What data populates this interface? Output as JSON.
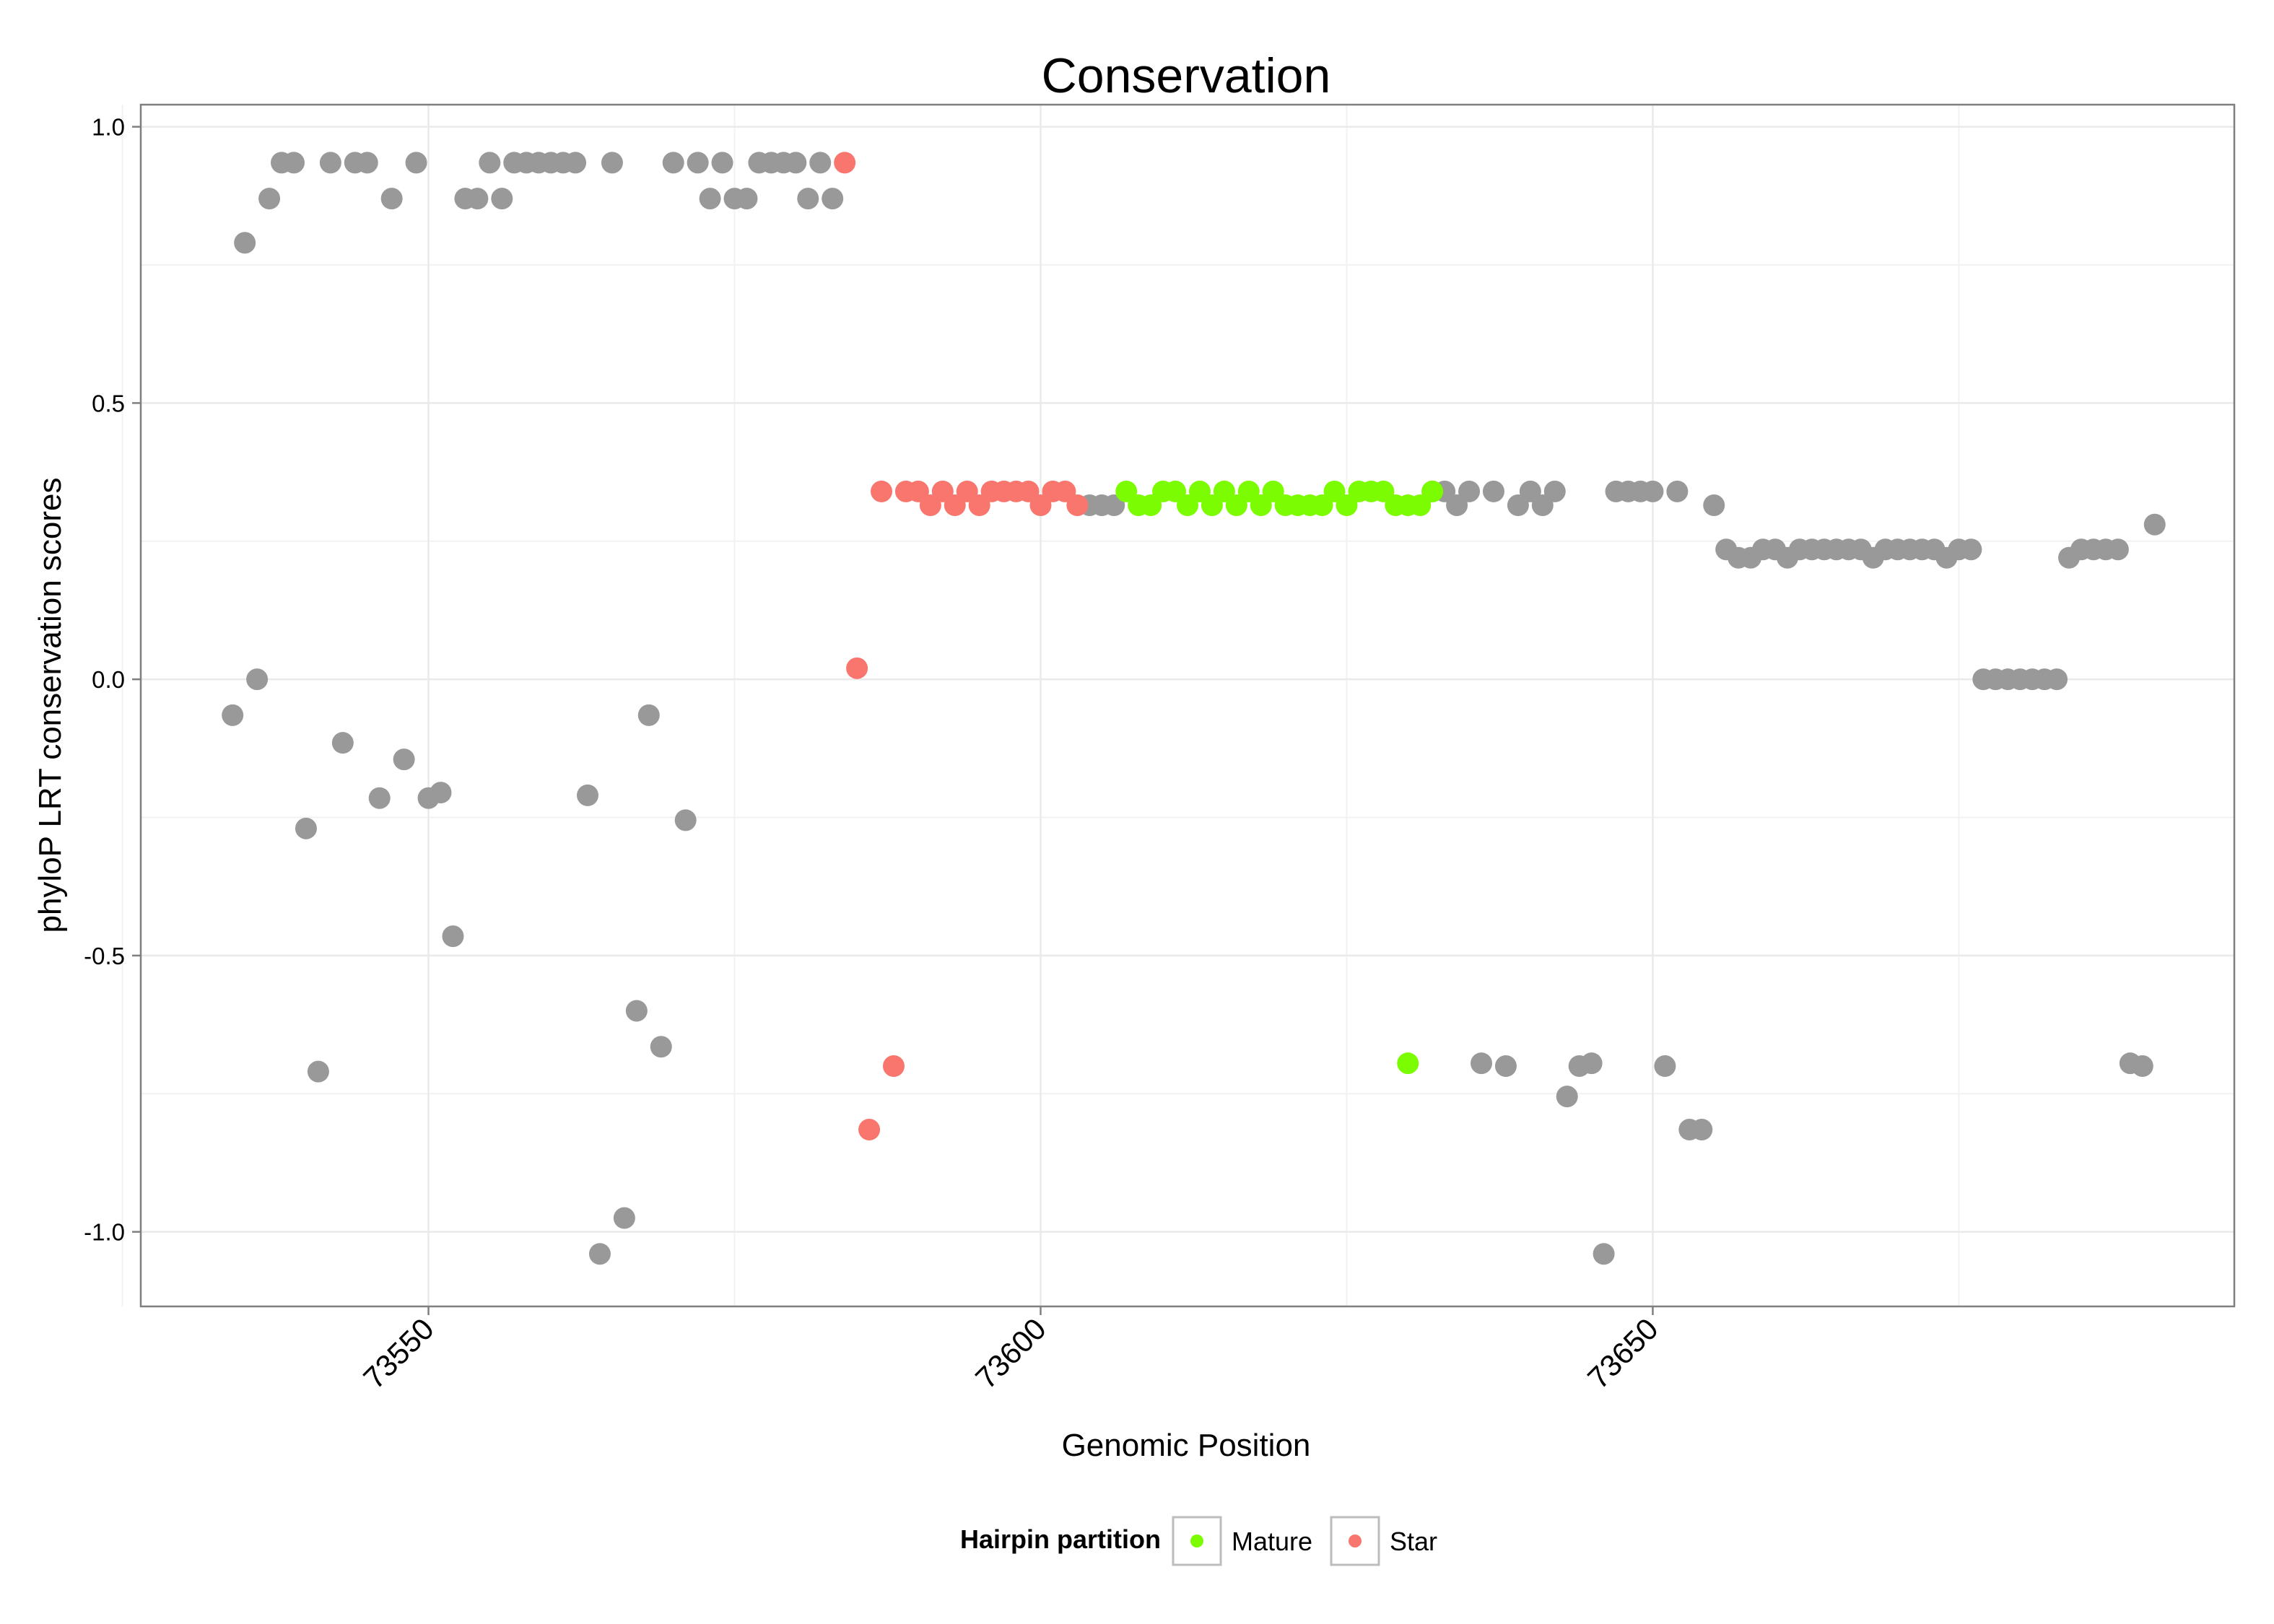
{
  "chart_data": {
    "type": "scatter",
    "title": "Conservation",
    "xlabel": "Genomic Position",
    "ylabel": "phyloP LRT conservation scores",
    "xlim": [
      73526.5,
      73697.5
    ],
    "ylim": [
      -1.135,
      1.04
    ],
    "x_ticks": [
      73550,
      73600,
      73650
    ],
    "x_tick_labels": [
      "73550",
      "73600",
      "73650"
    ],
    "x_minor_ticks": [
      73525,
      73575,
      73625,
      73675
    ],
    "y_ticks": [
      -1.0,
      -0.5,
      0.0,
      0.5,
      1.0
    ],
    "y_tick_labels": [
      "-1.0",
      "-0.5",
      "0.0",
      "0.5",
      "1.0"
    ],
    "y_minor_ticks": [
      -0.75,
      -0.25,
      0.25,
      0.75
    ],
    "grid": true,
    "legend": {
      "title": "Hairpin partition",
      "position": "bottom",
      "entries": [
        {
          "label": "Mature",
          "color": "#7CFC00"
        },
        {
          "label": "Star",
          "color": "#F8766D"
        }
      ]
    },
    "colors": {
      "Other": "#999999",
      "Mature": "#7CFC00",
      "Star": "#F8766D"
    },
    "series": [
      {
        "name": "Other",
        "points": [
          [
            73534,
            -0.065
          ],
          [
            73535,
            0.79
          ],
          [
            73536,
            0.0
          ],
          [
            73537,
            0.87
          ],
          [
            73538,
            0.935
          ],
          [
            73539,
            0.935
          ],
          [
            73540,
            -0.27
          ],
          [
            73541,
            -0.71
          ],
          [
            73542,
            0.935
          ],
          [
            73543,
            -0.115
          ],
          [
            73544,
            0.935
          ],
          [
            73545,
            0.935
          ],
          [
            73546,
            -0.215
          ],
          [
            73547,
            0.87
          ],
          [
            73548,
            -0.145
          ],
          [
            73549,
            0.935
          ],
          [
            73550,
            -0.215
          ],
          [
            73551,
            -0.205
          ],
          [
            73552,
            -0.465
          ],
          [
            73553,
            0.87
          ],
          [
            73554,
            0.87
          ],
          [
            73555,
            0.935
          ],
          [
            73556,
            0.87
          ],
          [
            73557,
            0.935
          ],
          [
            73558,
            0.935
          ],
          [
            73559,
            0.935
          ],
          [
            73560,
            0.935
          ],
          [
            73561,
            0.935
          ],
          [
            73562,
            0.935
          ],
          [
            73563,
            -0.21
          ],
          [
            73564,
            -1.04
          ],
          [
            73565,
            0.935
          ],
          [
            73566,
            -0.975
          ],
          [
            73567,
            -0.6
          ],
          [
            73568,
            -0.065
          ],
          [
            73569,
            -0.665
          ],
          [
            73570,
            0.935
          ],
          [
            73571,
            -0.255
          ],
          [
            73572,
            0.935
          ],
          [
            73573,
            0.87
          ],
          [
            73574,
            0.935
          ],
          [
            73575,
            0.87
          ],
          [
            73576,
            0.87
          ],
          [
            73577,
            0.935
          ],
          [
            73578,
            0.935
          ],
          [
            73579,
            0.935
          ],
          [
            73580,
            0.935
          ],
          [
            73581,
            0.87
          ],
          [
            73582,
            0.935
          ],
          [
            73583,
            0.87
          ],
          [
            73604,
            0.315
          ],
          [
            73605,
            0.315
          ],
          [
            73606,
            0.315
          ],
          [
            73632,
            0.34
          ],
          [
            73633,
            0.34
          ],
          [
            73634,
            0.315
          ],
          [
            73635,
            0.34
          ],
          [
            73636,
            -0.695
          ],
          [
            73637,
            0.34
          ],
          [
            73638,
            -0.7
          ],
          [
            73639,
            0.315
          ],
          [
            73640,
            0.34
          ],
          [
            73641,
            0.315
          ],
          [
            73642,
            0.34
          ],
          [
            73643,
            -0.755
          ],
          [
            73644,
            -0.7
          ],
          [
            73645,
            -0.695
          ],
          [
            73646,
            -1.04
          ],
          [
            73647,
            0.34
          ],
          [
            73648,
            0.34
          ],
          [
            73649,
            0.34
          ],
          [
            73650,
            0.34
          ],
          [
            73651,
            -0.7
          ],
          [
            73652,
            0.34
          ],
          [
            73653,
            -0.815
          ],
          [
            73654,
            -0.815
          ],
          [
            73655,
            0.315
          ],
          [
            73656,
            0.235
          ],
          [
            73657,
            0.22
          ],
          [
            73658,
            0.22
          ],
          [
            73659,
            0.235
          ],
          [
            73660,
            0.235
          ],
          [
            73661,
            0.22
          ],
          [
            73662,
            0.235
          ],
          [
            73663,
            0.235
          ],
          [
            73664,
            0.235
          ],
          [
            73665,
            0.235
          ],
          [
            73666,
            0.235
          ],
          [
            73667,
            0.235
          ],
          [
            73668,
            0.22
          ],
          [
            73669,
            0.235
          ],
          [
            73670,
            0.235
          ],
          [
            73671,
            0.235
          ],
          [
            73672,
            0.235
          ],
          [
            73673,
            0.235
          ],
          [
            73674,
            0.22
          ],
          [
            73675,
            0.235
          ],
          [
            73676,
            0.235
          ],
          [
            73677,
            0.0
          ],
          [
            73678,
            0.0
          ],
          [
            73679,
            0.0
          ],
          [
            73680,
            0.0
          ],
          [
            73681,
            0.0
          ],
          [
            73682,
            0.0
          ],
          [
            73683,
            0.0
          ],
          [
            73684,
            0.22
          ],
          [
            73685,
            0.235
          ],
          [
            73686,
            0.235
          ],
          [
            73687,
            0.235
          ],
          [
            73688,
            0.235
          ],
          [
            73689,
            -0.695
          ],
          [
            73690,
            -0.7
          ],
          [
            73691,
            0.28
          ]
        ]
      },
      {
        "name": "Star",
        "points": [
          [
            73584,
            0.935
          ],
          [
            73585,
            0.02
          ],
          [
            73586,
            -0.815
          ],
          [
            73587,
            0.34
          ],
          [
            73588,
            -0.7
          ],
          [
            73589,
            0.34
          ],
          [
            73590,
            0.34
          ],
          [
            73591,
            0.315
          ],
          [
            73592,
            0.34
          ],
          [
            73593,
            0.315
          ],
          [
            73594,
            0.34
          ],
          [
            73595,
            0.315
          ],
          [
            73596,
            0.34
          ],
          [
            73597,
            0.34
          ],
          [
            73598,
            0.34
          ],
          [
            73599,
            0.34
          ],
          [
            73600,
            0.315
          ],
          [
            73601,
            0.34
          ],
          [
            73602,
            0.34
          ],
          [
            73603,
            0.315
          ]
        ]
      },
      {
        "name": "Mature",
        "points": [
          [
            73607,
            0.34
          ],
          [
            73608,
            0.315
          ],
          [
            73609,
            0.315
          ],
          [
            73610,
            0.34
          ],
          [
            73611,
            0.34
          ],
          [
            73612,
            0.315
          ],
          [
            73613,
            0.34
          ],
          [
            73614,
            0.315
          ],
          [
            73615,
            0.34
          ],
          [
            73616,
            0.315
          ],
          [
            73617,
            0.34
          ],
          [
            73618,
            0.315
          ],
          [
            73619,
            0.34
          ],
          [
            73620,
            0.315
          ],
          [
            73621,
            0.315
          ],
          [
            73622,
            0.315
          ],
          [
            73623,
            0.315
          ],
          [
            73624,
            0.34
          ],
          [
            73625,
            0.315
          ],
          [
            73626,
            0.34
          ],
          [
            73627,
            0.34
          ],
          [
            73628,
            0.34
          ],
          [
            73629,
            0.315
          ],
          [
            73630,
            0.315
          ],
          [
            73631,
            0.315
          ],
          [
            73630,
            -0.695
          ],
          [
            73632,
            0.34
          ]
        ]
      }
    ]
  }
}
